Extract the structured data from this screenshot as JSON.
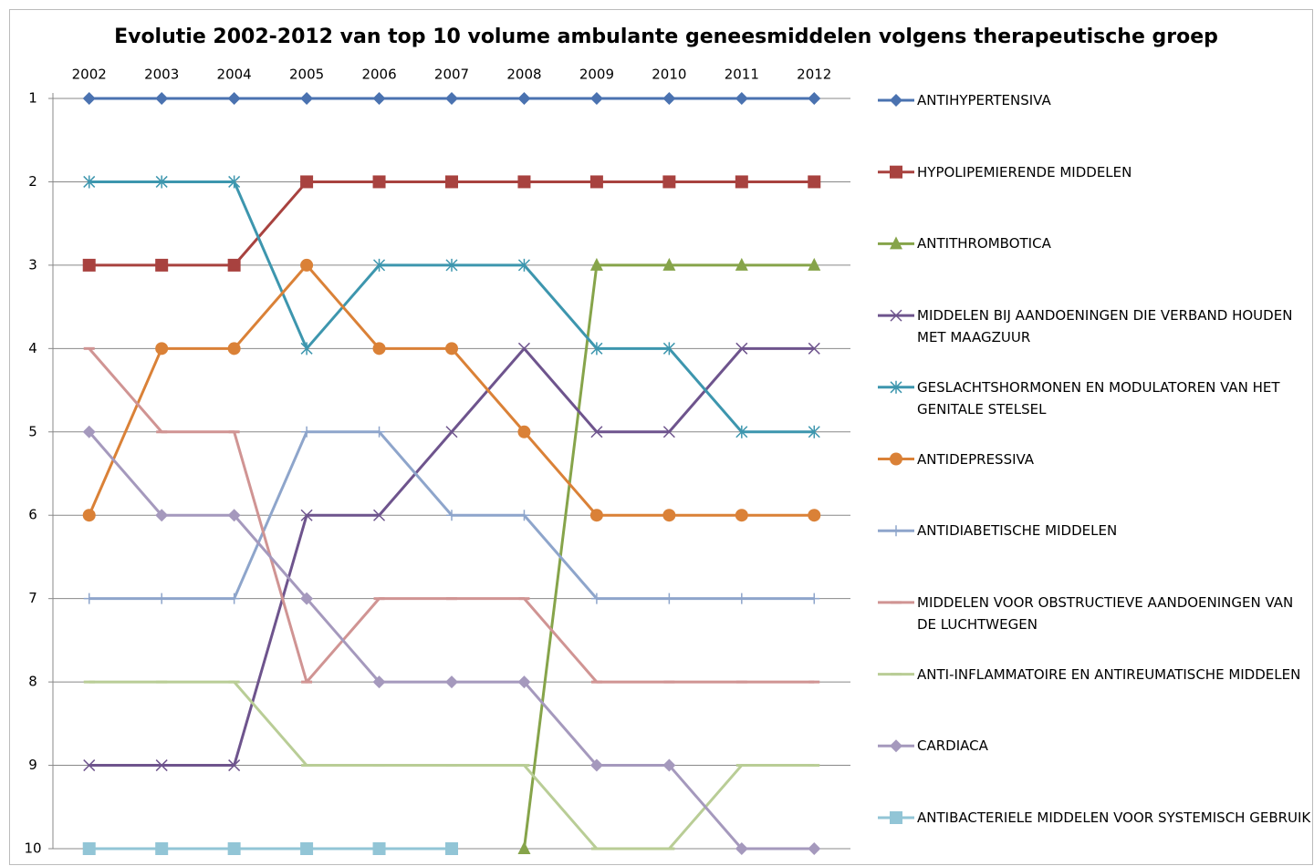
{
  "chart_data": {
    "type": "line",
    "title": "Evolutie 2002-2012 van top 10 volume ambulante geneesmiddelen volgens therapeutische groep",
    "categories": [
      "2002",
      "2003",
      "2004",
      "2005",
      "2006",
      "2007",
      "2008",
      "2009",
      "2010",
      "2011",
      "2012"
    ],
    "ylim": [
      1,
      10
    ],
    "y_reversed": true,
    "yticks": [
      1,
      2,
      3,
      4,
      5,
      6,
      7,
      8,
      9,
      10
    ],
    "grid": true,
    "legend": "right",
    "series": [
      {
        "name": "ANTIHYPERTENSIVA",
        "color": "#4a72b0",
        "marker": "diamond",
        "values": [
          1,
          1,
          1,
          1,
          1,
          1,
          1,
          1,
          1,
          1,
          1
        ]
      },
      {
        "name": "HYPOLIPEMIERENDE MIDDELEN",
        "color": "#a8423f",
        "marker": "square",
        "values": [
          3,
          3,
          3,
          2,
          2,
          2,
          2,
          2,
          2,
          2,
          2
        ]
      },
      {
        "name": "ANTITHROMBOTICA",
        "color": "#86a44a",
        "marker": "triangle",
        "values": [
          null,
          null,
          null,
          null,
          null,
          null,
          10,
          3,
          3,
          3,
          3
        ]
      },
      {
        "name": "MIDDELEN BIJ AANDOENINGEN DIE VERBAND HOUDEN MET MAAGZUUR",
        "color": "#6e548d",
        "marker": "x",
        "values": [
          9,
          9,
          9,
          6,
          6,
          5,
          4,
          5,
          5,
          4,
          4
        ]
      },
      {
        "name": "GESLACHTSHORMONEN EN MODULATOREN VAN HET GENITALE STELSEL",
        "color": "#3d96ae",
        "marker": "star",
        "values": [
          2,
          2,
          2,
          4,
          3,
          3,
          3,
          4,
          4,
          5,
          5
        ]
      },
      {
        "name": "ANTIDEPRESSIVA",
        "color": "#da8137",
        "marker": "circle",
        "values": [
          6,
          4,
          4,
          3,
          4,
          4,
          5,
          6,
          6,
          6,
          6
        ]
      },
      {
        "name": "ANTIDIABETISCHE MIDDELEN",
        "color": "#8ea5cb",
        "marker": "plus",
        "values": [
          7,
          7,
          7,
          5,
          5,
          6,
          6,
          7,
          7,
          7,
          7
        ]
      },
      {
        "name": "MIDDELEN VOOR OBSTRUCTIEVE AANDOENINGEN VAN DE LUCHTWEGEN",
        "color": "#d09493",
        "marker": "dash",
        "values": [
          4,
          5,
          5,
          8,
          7,
          7,
          7,
          8,
          8,
          8,
          8
        ]
      },
      {
        "name": "ANTI-INFLAMMATOIRE EN ANTIREUMATISCHE MIDDELEN",
        "color": "#b9cd96",
        "marker": "dash",
        "values": [
          8,
          8,
          8,
          9,
          9,
          9,
          9,
          10,
          10,
          9,
          9
        ]
      },
      {
        "name": "CARDIACA",
        "color": "#a599bd",
        "marker": "diamond",
        "values": [
          5,
          6,
          6,
          7,
          8,
          8,
          8,
          9,
          9,
          10,
          10
        ]
      },
      {
        "name": "ANTIBACTERIELE MIDDELEN VOOR SYSTEMISCH GEBRUIK",
        "color": "#92c5d6",
        "marker": "square",
        "values": [
          10,
          10,
          10,
          10,
          10,
          10,
          null,
          null,
          null,
          null,
          null
        ]
      }
    ]
  }
}
